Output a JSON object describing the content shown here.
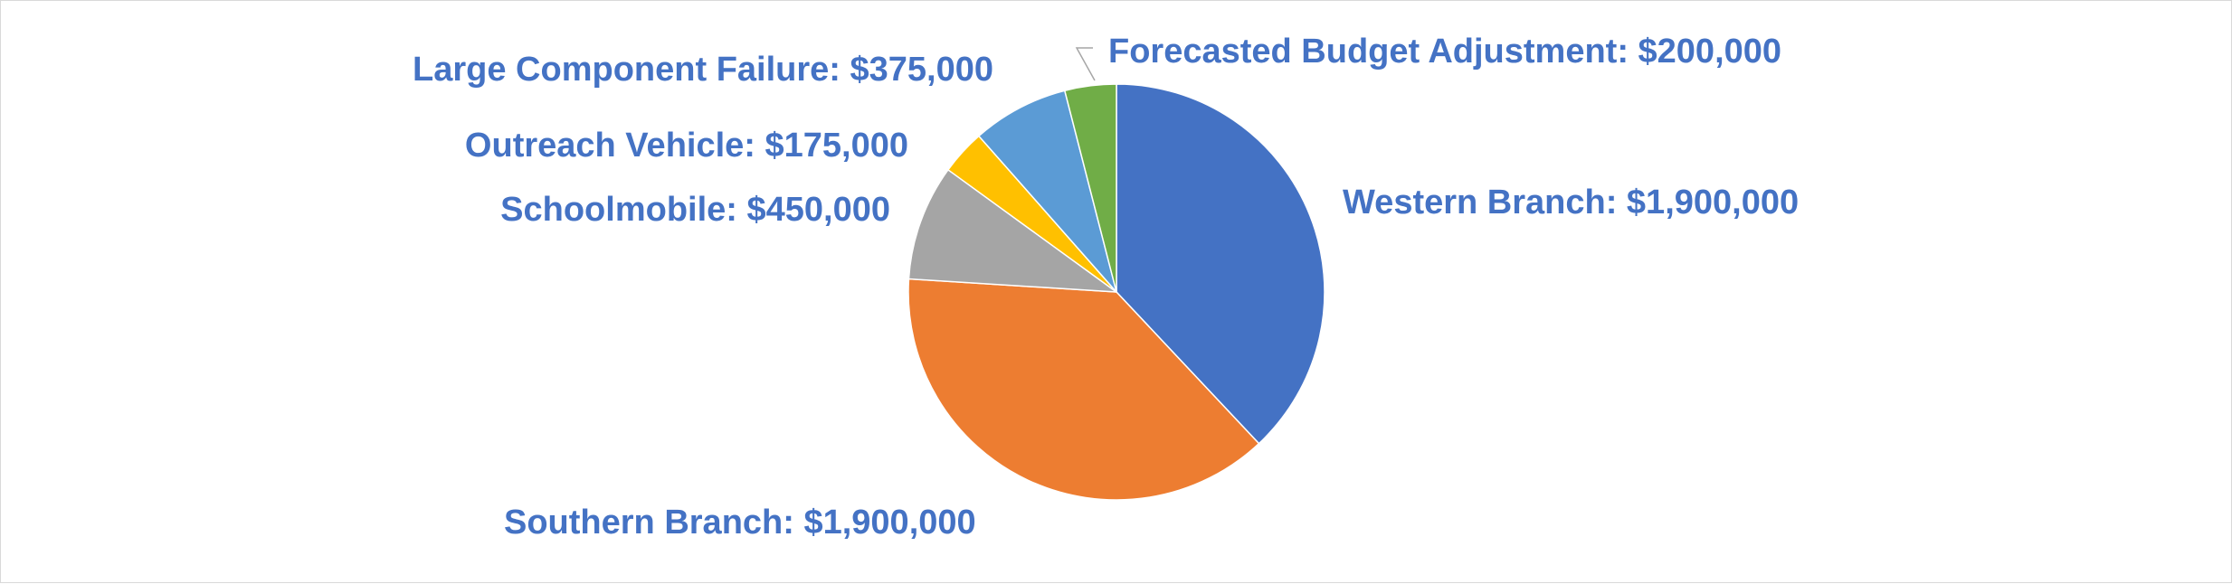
{
  "chart_data": {
    "type": "pie",
    "title": "",
    "start_angle_deg": 0,
    "direction": "clockwise",
    "legend": "none",
    "slices": [
      {
        "name": "Western Branch",
        "value": 1900000,
        "label": "Western Branch: $1,900,000",
        "color": "#4472C4"
      },
      {
        "name": "Southern Branch",
        "value": 1900000,
        "label": "Southern Branch: $1,900,000",
        "color": "#ED7D31"
      },
      {
        "name": "Schoolmobile",
        "value": 450000,
        "label": "Schoolmobile: $450,000",
        "color": "#A5A5A5"
      },
      {
        "name": "Outreach Vehicle",
        "value": 175000,
        "label": "Outreach Vehicle: $175,000",
        "color": "#FFC000"
      },
      {
        "name": "Large Component Failure",
        "value": 375000,
        "label": "Large Component Failure: $375,000",
        "color": "#5B9BD5"
      },
      {
        "name": "Forecasted Budget Adjustment",
        "value": 200000,
        "label": "Forecasted Budget Adjustment: $200,000",
        "color": "#70AD47"
      }
    ],
    "label_color": "#4472C4"
  }
}
